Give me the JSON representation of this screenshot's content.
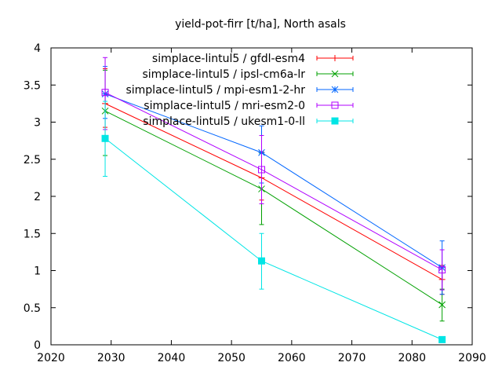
{
  "chart_data": {
    "type": "line",
    "title": "yield-pot-firr [t/ha], North asals",
    "xlabel": "",
    "ylabel": "",
    "xlim": [
      2020,
      2090
    ],
    "ylim": [
      0,
      4
    ],
    "x_ticks": [
      "2020",
      "2030",
      "2040",
      "2050",
      "2060",
      "2070",
      "2080",
      "2090"
    ],
    "y_ticks": [
      "0",
      "0.5",
      "1",
      "1.5",
      "2",
      "2.5",
      "3",
      "3.5",
      "4"
    ],
    "grid": false,
    "legend_position": "top-right",
    "x": [
      2029,
      2055,
      2085
    ],
    "series": [
      {
        "name": "simplace-lintul5 / gfdl-esm4",
        "color": "#ff0000",
        "marker": "plus",
        "values": [
          3.25,
          2.25,
          0.88
        ],
        "err_low": [
          2.93,
          1.95,
          0.68
        ],
        "err_high": [
          3.72,
          2.6,
          1.07
        ]
      },
      {
        "name": "simplace-lintul5 / ipsl-cm6a-lr",
        "color": "#00a000",
        "marker": "cross",
        "values": [
          3.15,
          2.1,
          0.54
        ],
        "err_low": [
          2.55,
          1.62,
          0.32
        ],
        "err_high": [
          3.7,
          2.58,
          0.75
        ]
      },
      {
        "name": "simplace-lintul5 / mpi-esm1-2-hr",
        "color": "#0066ff",
        "marker": "star",
        "values": [
          3.38,
          2.59,
          1.04
        ],
        "err_low": [
          3.05,
          2.18,
          0.68
        ],
        "err_high": [
          3.75,
          2.95,
          1.4
        ]
      },
      {
        "name": "simplace-lintul5 / mri-esm2-0",
        "color": "#b000ff",
        "marker": "square",
        "values": [
          3.4,
          2.36,
          1.01
        ],
        "err_low": [
          2.9,
          1.9,
          0.74
        ],
        "err_high": [
          3.87,
          2.82,
          1.28
        ]
      },
      {
        "name": "simplace-lintul5 / ukesm1-0-ll",
        "color": "#00e5e5",
        "marker": "filled-square",
        "values": [
          2.78,
          1.13,
          0.07
        ],
        "err_low": [
          2.27,
          0.75,
          0.05
        ],
        "err_high": [
          3.28,
          1.5,
          0.09
        ]
      }
    ]
  }
}
